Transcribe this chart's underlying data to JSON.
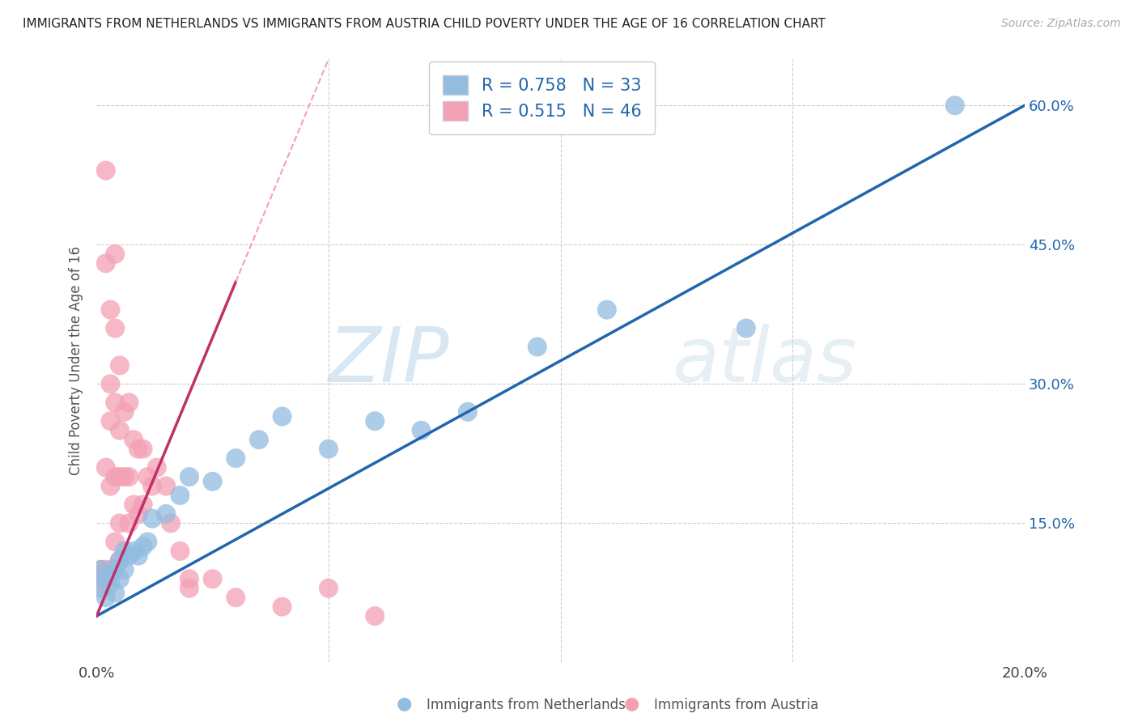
{
  "title": "IMMIGRANTS FROM NETHERLANDS VS IMMIGRANTS FROM AUSTRIA CHILD POVERTY UNDER THE AGE OF 16 CORRELATION CHART",
  "source": "Source: ZipAtlas.com",
  "ylabel": "Child Poverty Under the Age of 16",
  "xlim": [
    0.0,
    0.2
  ],
  "ylim": [
    0.0,
    0.65
  ],
  "xtick_positions": [
    0.0,
    0.05,
    0.1,
    0.15,
    0.2
  ],
  "xticklabels": [
    "0.0%",
    "",
    "",
    "",
    "20.0%"
  ],
  "ytick_positions": [
    0.0,
    0.15,
    0.3,
    0.45,
    0.6
  ],
  "yticklabels_right": [
    "",
    "15.0%",
    "30.0%",
    "45.0%",
    "60.0%"
  ],
  "netherlands_color": "#92bce0",
  "austria_color": "#f4a0b5",
  "netherlands_line_color": "#2166ac",
  "austria_line_color": "#c0306a",
  "austria_dash_color": "#f4a0b5",
  "grid_color": "#cccccc",
  "background_color": "#ffffff",
  "legend_label_netherlands": "Immigrants from Netherlands",
  "legend_label_austria": "Immigrants from Austria",
  "legend_R_nl": "R = 0.758",
  "legend_N_nl": "N = 33",
  "legend_R_at": "R = 0.515",
  "legend_N_at": "N = 46",
  "watermark_text": "ZIPatlas",
  "nl_intercept": 0.05,
  "nl_slope": 2.75,
  "at_intercept": 0.05,
  "at_slope": 12.0,
  "nl_x": [
    0.001,
    0.001,
    0.002,
    0.002,
    0.003,
    0.003,
    0.004,
    0.004,
    0.005,
    0.005,
    0.006,
    0.006,
    0.007,
    0.008,
    0.009,
    0.01,
    0.011,
    0.012,
    0.015,
    0.018,
    0.02,
    0.025,
    0.03,
    0.035,
    0.04,
    0.05,
    0.06,
    0.07,
    0.08,
    0.095,
    0.11,
    0.14,
    0.185
  ],
  "nl_y": [
    0.1,
    0.08,
    0.09,
    0.07,
    0.085,
    0.095,
    0.075,
    0.1,
    0.09,
    0.11,
    0.1,
    0.12,
    0.115,
    0.12,
    0.115,
    0.125,
    0.13,
    0.155,
    0.16,
    0.18,
    0.2,
    0.195,
    0.22,
    0.24,
    0.265,
    0.23,
    0.26,
    0.25,
    0.27,
    0.34,
    0.38,
    0.36,
    0.6
  ],
  "at_x": [
    0.001,
    0.001,
    0.001,
    0.002,
    0.002,
    0.002,
    0.002,
    0.003,
    0.003,
    0.003,
    0.003,
    0.003,
    0.004,
    0.004,
    0.004,
    0.004,
    0.004,
    0.005,
    0.005,
    0.005,
    0.005,
    0.005,
    0.006,
    0.006,
    0.007,
    0.007,
    0.007,
    0.008,
    0.008,
    0.009,
    0.009,
    0.01,
    0.01,
    0.011,
    0.012,
    0.013,
    0.015,
    0.016,
    0.018,
    0.02,
    0.02,
    0.025,
    0.03,
    0.04,
    0.05,
    0.06
  ],
  "at_y": [
    0.1,
    0.09,
    0.085,
    0.53,
    0.43,
    0.21,
    0.1,
    0.38,
    0.3,
    0.26,
    0.19,
    0.1,
    0.44,
    0.36,
    0.28,
    0.2,
    0.13,
    0.32,
    0.25,
    0.2,
    0.15,
    0.11,
    0.27,
    0.2,
    0.28,
    0.2,
    0.15,
    0.24,
    0.17,
    0.23,
    0.16,
    0.23,
    0.17,
    0.2,
    0.19,
    0.21,
    0.19,
    0.15,
    0.12,
    0.09,
    0.08,
    0.09,
    0.07,
    0.06,
    0.08,
    0.05
  ]
}
